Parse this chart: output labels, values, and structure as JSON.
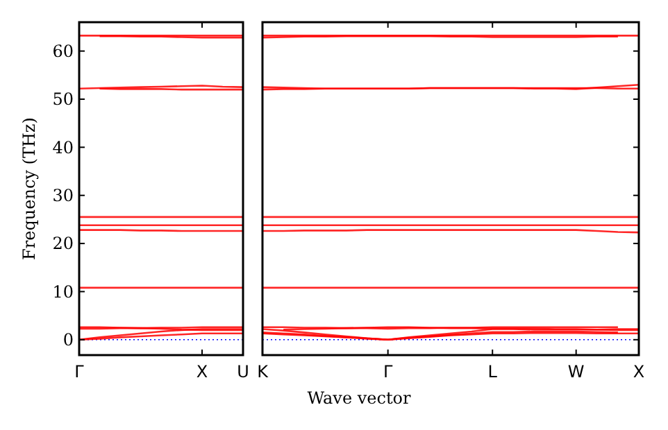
{
  "chart_data": [
    {
      "type": "line",
      "ylabel": "Frequency (THz)",
      "categories": [
        "Γ",
        null,
        null,
        null,
        null,
        null,
        "X",
        null,
        "U"
      ],
      "ylim": [
        -3.2,
        66
      ],
      "yticks": [
        0,
        10,
        20,
        30,
        40,
        50,
        60
      ],
      "grid": false,
      "line_style": "solid",
      "ref_lines": [
        {
          "axis": "y",
          "value": 0,
          "color": "#0000ff",
          "line_style": "dotted"
        }
      ],
      "series": [
        {
          "color": "#ff0000",
          "values": [
            0,
            0.2,
            0.5,
            0.7,
            0.9,
            1.1,
            1.3,
            1.3,
            1.3
          ]
        },
        {
          "color": "#ff0000",
          "values": [
            0,
            0.5,
            0.9,
            1.3,
            1.7,
            2.0,
            2.2,
            2.2,
            2.2
          ]
        },
        {
          "color": "#ff0000",
          "values": [
            2.6,
            2.6,
            2.5,
            2.4,
            2.3,
            2.1,
            2.0,
            2.0,
            2.0
          ]
        },
        {
          "color": "#ff0000",
          "values": [
            2.3,
            2.3,
            2.4,
            2.4,
            2.5,
            2.5,
            2.6,
            2.6,
            2.6
          ]
        },
        {
          "color": "#ff0000",
          "values": [
            10.8,
            10.8,
            10.8,
            10.8,
            10.8,
            10.8,
            10.8,
            10.8,
            10.8
          ]
        },
        {
          "color": "#ff0000",
          "values": [
            22.8,
            22.8,
            22.8,
            22.7,
            22.7,
            22.6,
            22.6,
            22.6,
            22.6
          ]
        },
        {
          "color": "#ff0000",
          "values": [
            23.8,
            23.8,
            23.8,
            23.8,
            23.8,
            23.8,
            23.8,
            23.8,
            23.8
          ]
        },
        {
          "color": "#ff0000",
          "values": [
            25.5,
            25.5,
            25.5,
            25.5,
            25.5,
            25.5,
            25.5,
            25.5,
            25.5
          ]
        },
        {
          "color": "#ff0000",
          "values": [
            52.2,
            52.3,
            52.4,
            52.5,
            52.6,
            52.7,
            52.8,
            52.6,
            52.5
          ]
        },
        {
          "color": "#ff0000",
          "values": [
            null,
            52.2,
            52.1,
            52.1,
            52.1,
            52.0,
            52.0,
            52.0,
            52.0
          ]
        },
        {
          "color": "#ff0000",
          "values": [
            null,
            63.1,
            63.1,
            63.0,
            63.0,
            62.9,
            62.8,
            62.8,
            62.8
          ]
        },
        {
          "color": "#ff0000",
          "values": [
            63.2,
            63.2,
            63.2,
            63.2,
            63.2,
            63.2,
            63.2,
            63.2,
            63.2
          ]
        }
      ]
    },
    {
      "type": "line",
      "xlabel": "Wave vector",
      "categories": [
        "K",
        null,
        null,
        null,
        null,
        null,
        "Γ",
        null,
        null,
        null,
        null,
        "L",
        null,
        null,
        null,
        "W",
        null,
        null,
        "X"
      ],
      "ylim": [
        -3.2,
        66
      ],
      "yticks": [
        0,
        10,
        20,
        30,
        40,
        50,
        60
      ],
      "tick_labels": "x",
      "grid": false,
      "line_style": "solid",
      "ref_lines": [
        {
          "axis": "y",
          "value": 0,
          "color": "#0000ff",
          "line_style": "dotted"
        }
      ],
      "series": [
        {
          "color": "#ff0000",
          "values": [
            1.3,
            1.1,
            0.9,
            0.7,
            0.5,
            0.2,
            0,
            0.3,
            0.6,
            0.9,
            1.1,
            1.3,
            1.3,
            1.4,
            1.4,
            1.4,
            1.3,
            1.3,
            1.3
          ]
        },
        {
          "color": "#ff0000",
          "values": [
            1.5,
            1.3,
            1.1,
            0.8,
            0.5,
            0.3,
            0,
            0.4,
            0.7,
            1.0,
            1.3,
            1.6,
            1.6,
            1.7,
            1.7,
            1.7,
            1.6,
            1.5,
            null
          ]
        },
        {
          "color": "#ff0000",
          "values": [
            2.2,
            1.9,
            1.5,
            1.1,
            0.7,
            0.3,
            0,
            0.5,
            0.9,
            1.3,
            1.7,
            2.2,
            2.2,
            2.1,
            2.1,
            2.1,
            2.1,
            2.2,
            2.2
          ]
        },
        {
          "color": "#ff0000",
          "values": [
            null,
            2.1,
            2.2,
            2.3,
            2.4,
            2.5,
            2.6,
            2.6,
            2.5,
            2.4,
            2.4,
            2.3,
            2.3,
            2.3,
            2.2,
            2.2,
            2.1,
            2.0,
            2.0
          ]
        },
        {
          "color": "#ff0000",
          "values": [
            2.6,
            2.6,
            2.5,
            2.5,
            2.4,
            2.4,
            2.3,
            2.4,
            2.4,
            2.5,
            2.5,
            2.6,
            2.6,
            2.6,
            2.6,
            2.6,
            2.6,
            2.6,
            null
          ]
        },
        {
          "color": "#ff0000",
          "values": [
            10.8,
            10.8,
            10.8,
            10.8,
            10.8,
            10.8,
            10.8,
            10.8,
            10.8,
            10.8,
            10.8,
            10.8,
            10.8,
            10.8,
            10.8,
            10.8,
            10.8,
            10.8,
            10.8
          ]
        },
        {
          "color": "#ff0000",
          "values": [
            22.6,
            22.6,
            22.7,
            22.7,
            22.7,
            22.8,
            22.8,
            22.8,
            22.8,
            22.8,
            22.8,
            22.8,
            22.8,
            22.8,
            22.8,
            22.8,
            22.6,
            22.4,
            22.3
          ]
        },
        {
          "color": "#ff0000",
          "values": [
            23.8,
            23.8,
            23.8,
            23.8,
            23.8,
            23.8,
            23.8,
            23.8,
            23.8,
            23.8,
            23.8,
            23.8,
            23.8,
            23.8,
            23.8,
            23.8,
            23.8,
            23.8,
            23.8
          ]
        },
        {
          "color": "#ff0000",
          "values": [
            25.5,
            25.5,
            25.5,
            25.5,
            25.5,
            25.5,
            25.5,
            25.5,
            25.5,
            25.5,
            25.5,
            25.5,
            25.5,
            25.5,
            25.5,
            25.5,
            25.5,
            25.5,
            25.5
          ]
        },
        {
          "color": "#ff0000",
          "values": [
            52.5,
            52.4,
            52.3,
            52.2,
            52.2,
            52.2,
            52.2,
            52.2,
            52.3,
            52.3,
            52.3,
            52.3,
            52.3,
            52.2,
            52.2,
            52.1,
            52.4,
            52.7,
            53.0
          ]
        },
        {
          "color": "#ff0000",
          "values": [
            52.0,
            52.1,
            52.1,
            52.2,
            52.2,
            52.2,
            52.2,
            52.2,
            52.3,
            52.3,
            52.3,
            52.3,
            52.3,
            52.3,
            52.3,
            52.3,
            52.3,
            52.2,
            52.2
          ]
        },
        {
          "color": "#ff0000",
          "values": [
            62.8,
            62.9,
            63.0,
            63.0,
            63.1,
            63.1,
            63.1,
            63.1,
            63.1,
            63.0,
            63.0,
            62.9,
            62.9,
            62.9,
            62.9,
            62.9,
            63.0,
            63.0,
            null
          ]
        },
        {
          "color": "#ff0000",
          "values": [
            63.2,
            63.2,
            63.2,
            63.2,
            63.2,
            63.2,
            63.2,
            63.2,
            63.2,
            63.2,
            63.2,
            63.2,
            63.2,
            63.2,
            63.2,
            63.2,
            63.2,
            63.2,
            63.2
          ]
        }
      ]
    }
  ]
}
